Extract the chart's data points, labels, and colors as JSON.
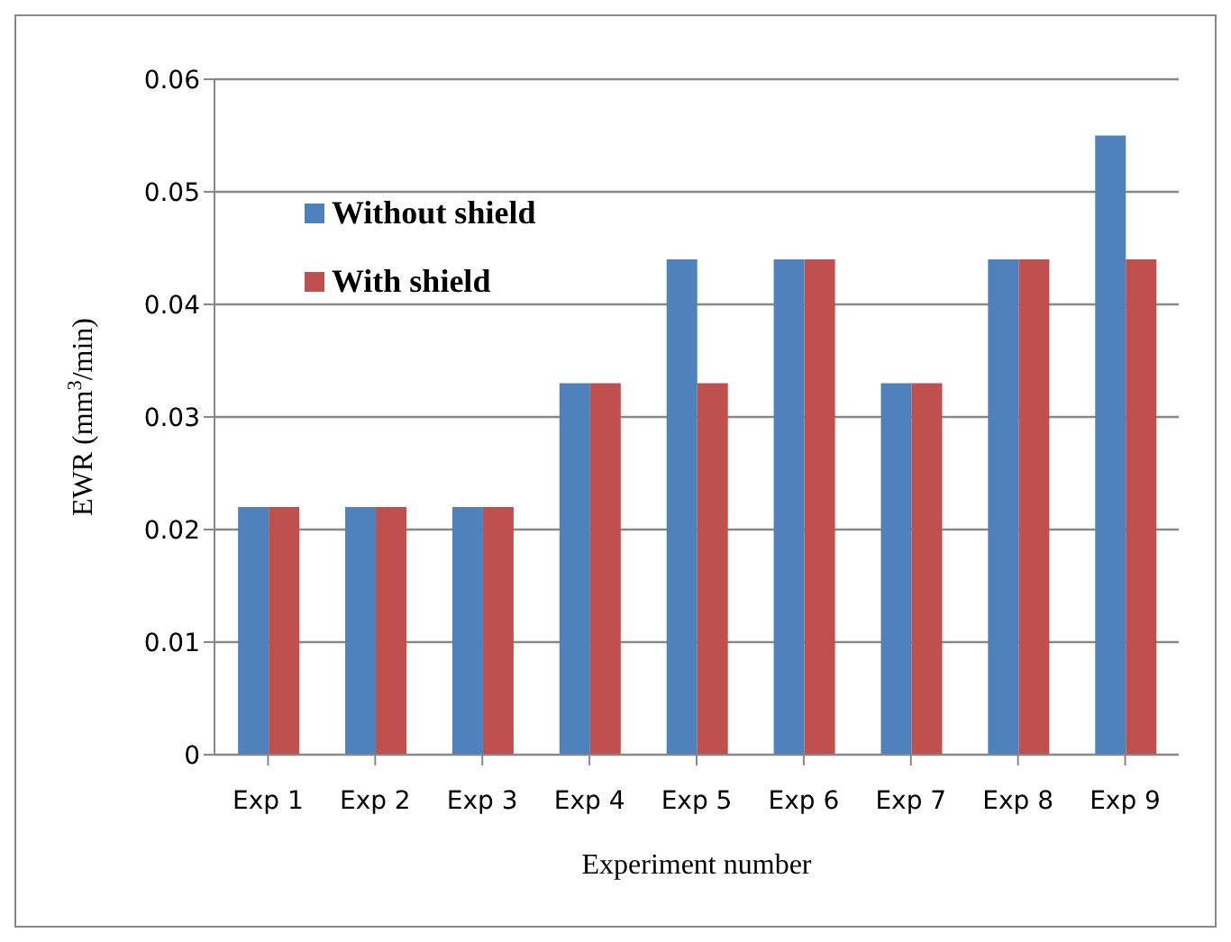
{
  "chart_data": {
    "type": "bar",
    "xlabel": "Experiment number",
    "ylabel": "EWR (mm$^{3}$/min)",
    "categories": [
      "Exp 1",
      "Exp 2",
      "Exp 3",
      "Exp 4",
      "Exp 5",
      "Exp 6",
      "Exp 7",
      "Exp 8",
      "Exp 9"
    ],
    "series": [
      {
        "name": "Without shield",
        "color": "#4f81bd",
        "values": [
          0.022,
          0.022,
          0.022,
          0.033,
          0.044,
          0.044,
          0.033,
          0.044,
          0.055
        ]
      },
      {
        "name": "With shield",
        "color": "#c0504d",
        "values": [
          0.022,
          0.022,
          0.022,
          0.033,
          0.033,
          0.044,
          0.033,
          0.044,
          0.044
        ]
      }
    ],
    "ylim": [
      0,
      0.06
    ],
    "yticks": [
      0,
      0.01,
      0.02,
      0.03,
      0.04,
      0.05,
      0.06
    ],
    "grid": "y",
    "legend": "top left"
  }
}
